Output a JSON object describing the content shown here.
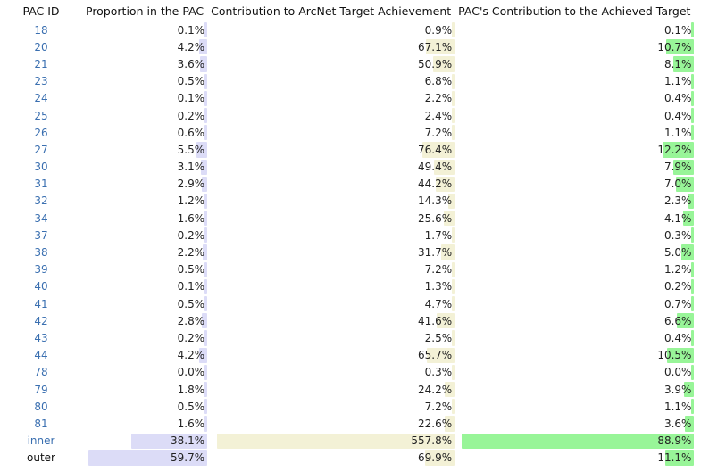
{
  "headers": {
    "id": "PAC ID",
    "proportion": "Proportion in the PAC",
    "contribution": "Contribution to ArcNet Target Achievement",
    "achieved": "PAC's Contribution to the Achieved Target"
  },
  "colors": {
    "proportion_bar": "#dcdcf7",
    "contribution_bar": "#f3f1d6",
    "achieved_bar": "#98f598",
    "id_link": "#3a6fb0"
  },
  "scales": {
    "proportion_max": 59.7,
    "contribution_max": 557.8,
    "achieved_max": 88.9
  },
  "rows": [
    {
      "id": "18",
      "proportion": "0.1%",
      "contribution": "0.9%",
      "achieved": "0.1%"
    },
    {
      "id": "20",
      "proportion": "4.2%",
      "contribution": "67.1%",
      "achieved": "10.7%"
    },
    {
      "id": "21",
      "proportion": "3.6%",
      "contribution": "50.9%",
      "achieved": "8.1%"
    },
    {
      "id": "23",
      "proportion": "0.5%",
      "contribution": "6.8%",
      "achieved": "1.1%"
    },
    {
      "id": "24",
      "proportion": "0.1%",
      "contribution": "2.2%",
      "achieved": "0.4%"
    },
    {
      "id": "25",
      "proportion": "0.2%",
      "contribution": "2.4%",
      "achieved": "0.4%"
    },
    {
      "id": "26",
      "proportion": "0.6%",
      "contribution": "7.2%",
      "achieved": "1.1%"
    },
    {
      "id": "27",
      "proportion": "5.5%",
      "contribution": "76.4%",
      "achieved": "12.2%"
    },
    {
      "id": "30",
      "proportion": "3.1%",
      "contribution": "49.4%",
      "achieved": "7.9%"
    },
    {
      "id": "31",
      "proportion": "2.9%",
      "contribution": "44.2%",
      "achieved": "7.0%"
    },
    {
      "id": "32",
      "proportion": "1.2%",
      "contribution": "14.3%",
      "achieved": "2.3%"
    },
    {
      "id": "34",
      "proportion": "1.6%",
      "contribution": "25.6%",
      "achieved": "4.1%"
    },
    {
      "id": "37",
      "proportion": "0.2%",
      "contribution": "1.7%",
      "achieved": "0.3%"
    },
    {
      "id": "38",
      "proportion": "2.2%",
      "contribution": "31.7%",
      "achieved": "5.0%"
    },
    {
      "id": "39",
      "proportion": "0.5%",
      "contribution": "7.2%",
      "achieved": "1.2%"
    },
    {
      "id": "40",
      "proportion": "0.1%",
      "contribution": "1.3%",
      "achieved": "0.2%"
    },
    {
      "id": "41",
      "proportion": "0.5%",
      "contribution": "4.7%",
      "achieved": "0.7%"
    },
    {
      "id": "42",
      "proportion": "2.8%",
      "contribution": "41.6%",
      "achieved": "6.6%"
    },
    {
      "id": "43",
      "proportion": "0.2%",
      "contribution": "2.5%",
      "achieved": "0.4%"
    },
    {
      "id": "44",
      "proportion": "4.2%",
      "contribution": "65.7%",
      "achieved": "10.5%"
    },
    {
      "id": "78",
      "proportion": "0.0%",
      "contribution": "0.3%",
      "achieved": "0.0%"
    },
    {
      "id": "79",
      "proportion": "1.8%",
      "contribution": "24.2%",
      "achieved": "3.9%"
    },
    {
      "id": "80",
      "proportion": "0.5%",
      "contribution": "7.2%",
      "achieved": "1.1%"
    },
    {
      "id": "81",
      "proportion": "1.6%",
      "contribution": "22.6%",
      "achieved": "3.6%"
    },
    {
      "id": "inner",
      "proportion": "38.1%",
      "contribution": "557.8%",
      "achieved": "88.9%"
    },
    {
      "id": "outer",
      "proportion": "59.7%",
      "contribution": "69.9%",
      "achieved": "11.1%",
      "dark": true
    }
  ]
}
